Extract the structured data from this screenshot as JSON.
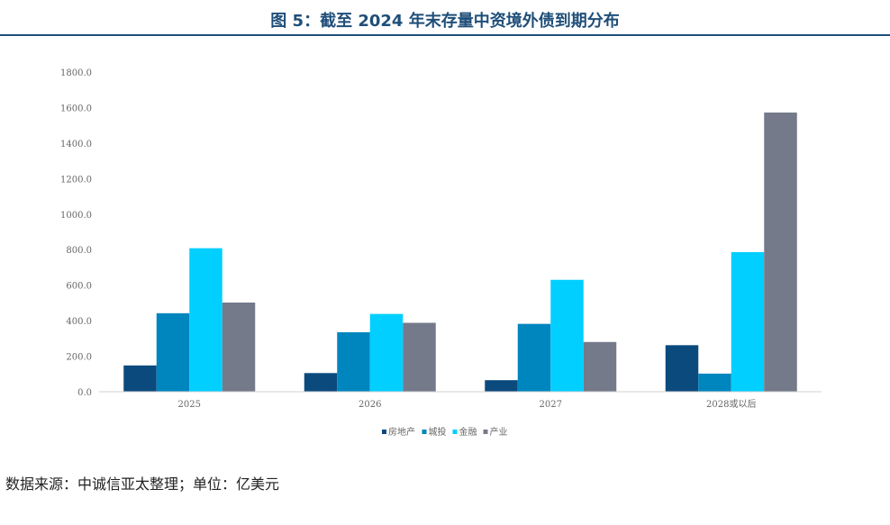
{
  "header": {
    "title": "图 5：截至 2024 年末存量中资境外债到期分布"
  },
  "footer": {
    "source": "数据来源：中诚信亚太整理；单位：亿美元"
  },
  "chart_data": {
    "type": "bar",
    "title": "图 5：截至 2024 年末存量中资境外债到期分布",
    "xlabel": "",
    "ylabel": "",
    "ylim": [
      0,
      1800
    ],
    "yticks": [
      "0.0",
      "200.0",
      "400.0",
      "600.0",
      "800.0",
      "1000.0",
      "1200.0",
      "1400.0",
      "1600.0",
      "1800.0"
    ],
    "grid": false,
    "legend_position": "bottom",
    "categories": [
      "2025",
      "2026",
      "2027",
      "2028或以后"
    ],
    "series": [
      {
        "name": "房地产",
        "color": "#0b4a7d",
        "values": [
          148,
          105,
          65,
          262
        ]
      },
      {
        "name": "城投",
        "color": "#0086bf",
        "values": [
          442,
          335,
          382,
          102
        ]
      },
      {
        "name": "金融",
        "color": "#00cfff",
        "values": [
          808,
          438,
          630,
          786
        ]
      },
      {
        "name": "产业",
        "color": "#747a8a",
        "values": [
          502,
          388,
          280,
          1572
        ]
      }
    ]
  }
}
